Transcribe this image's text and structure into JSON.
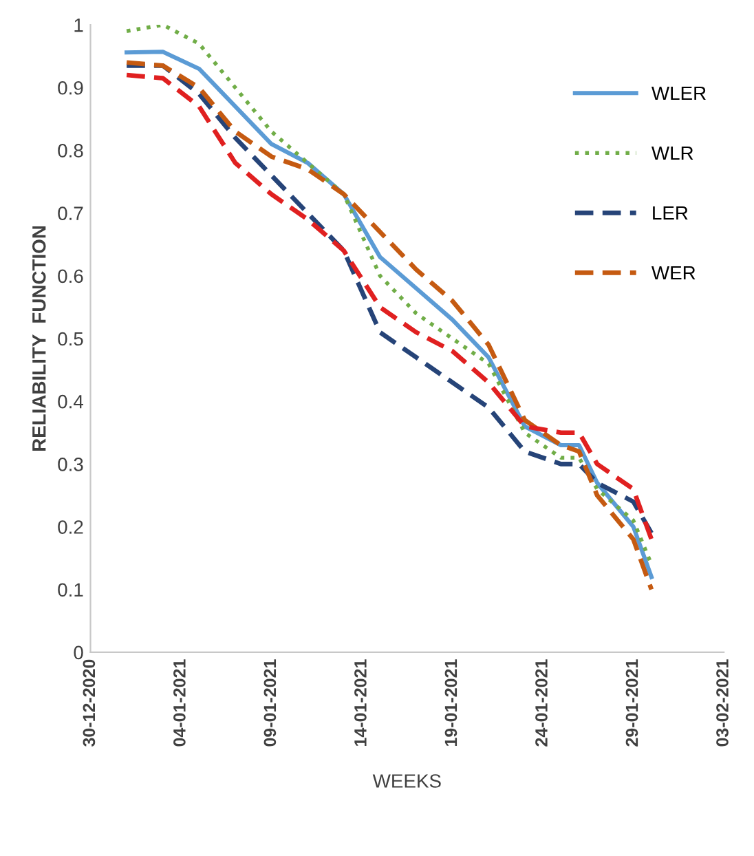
{
  "chart_data": {
    "type": "line",
    "xlabel": "WEEKS",
    "ylabel": "RELIABILITY  FUNCTION",
    "x": [
      "2021-01-01",
      "2021-01-03",
      "2021-01-05",
      "2021-01-07",
      "2021-01-09",
      "2021-01-11",
      "2021-01-13",
      "2021-01-15",
      "2021-01-17",
      "2021-01-19",
      "2021-01-21",
      "2021-01-23",
      "2021-01-25",
      "2021-01-26",
      "2021-01-27",
      "2021-01-29",
      "2021-01-30"
    ],
    "series": [
      {
        "name": "WLER",
        "color": "#5b9bd5",
        "line_style": "solid",
        "values": [
          0.956,
          0.957,
          0.93,
          0.87,
          0.81,
          0.78,
          0.73,
          0.63,
          0.58,
          0.53,
          0.47,
          0.36,
          0.33,
          0.33,
          0.27,
          0.2,
          0.12
        ]
      },
      {
        "name": "WLR",
        "color": "#70ad47",
        "line_style": "dotted",
        "values": [
          0.99,
          1.0,
          0.97,
          0.9,
          0.83,
          0.78,
          0.73,
          0.6,
          0.54,
          0.5,
          0.46,
          0.35,
          0.31,
          0.31,
          0.26,
          0.21,
          0.14
        ]
      },
      {
        "name": "LER",
        "color": "#264478",
        "line_style": "dashed",
        "values": [
          0.935,
          0.935,
          0.89,
          0.82,
          0.76,
          0.7,
          0.64,
          0.51,
          0.47,
          0.43,
          0.39,
          0.32,
          0.3,
          0.3,
          0.27,
          0.24,
          0.19
        ]
      },
      {
        "name": "WER",
        "color": "#c55a11",
        "line_style": "dashed",
        "values": [
          0.94,
          0.935,
          0.9,
          0.83,
          0.79,
          0.77,
          0.73,
          0.67,
          0.61,
          0.56,
          0.49,
          0.37,
          0.33,
          0.32,
          0.25,
          0.18,
          0.1
        ]
      },
      {
        "color": "#e02020",
        "line_style": "dashed",
        "values": [
          0.92,
          0.915,
          0.87,
          0.78,
          0.73,
          0.69,
          0.64,
          0.55,
          0.51,
          0.48,
          0.43,
          0.36,
          0.35,
          0.35,
          0.3,
          0.26,
          0.18
        ]
      }
    ],
    "xlim": [
      "2020-12-30",
      "2021-02-03"
    ],
    "xticks": [
      {
        "value": "2020-12-30",
        "label": "30-12-2020"
      },
      {
        "value": "2021-01-04",
        "label": "04-01-2021"
      },
      {
        "value": "2021-01-09",
        "label": "09-01-2021"
      },
      {
        "value": "2021-01-14",
        "label": "14-01-2021"
      },
      {
        "value": "2021-01-19",
        "label": "19-01-2021"
      },
      {
        "value": "2021-01-24",
        "label": "24-01-2021"
      },
      {
        "value": "2021-01-29",
        "label": "29-01-2021"
      },
      {
        "value": "2021-02-03",
        "label": "03-02-2021"
      }
    ],
    "ylim": [
      0,
      1
    ],
    "yticks": [
      0,
      0.1,
      0.2,
      0.3,
      0.4,
      0.5,
      0.6,
      0.7,
      0.8,
      0.9,
      1
    ],
    "grid": false,
    "legend": "top right",
    "marker": "none"
  }
}
